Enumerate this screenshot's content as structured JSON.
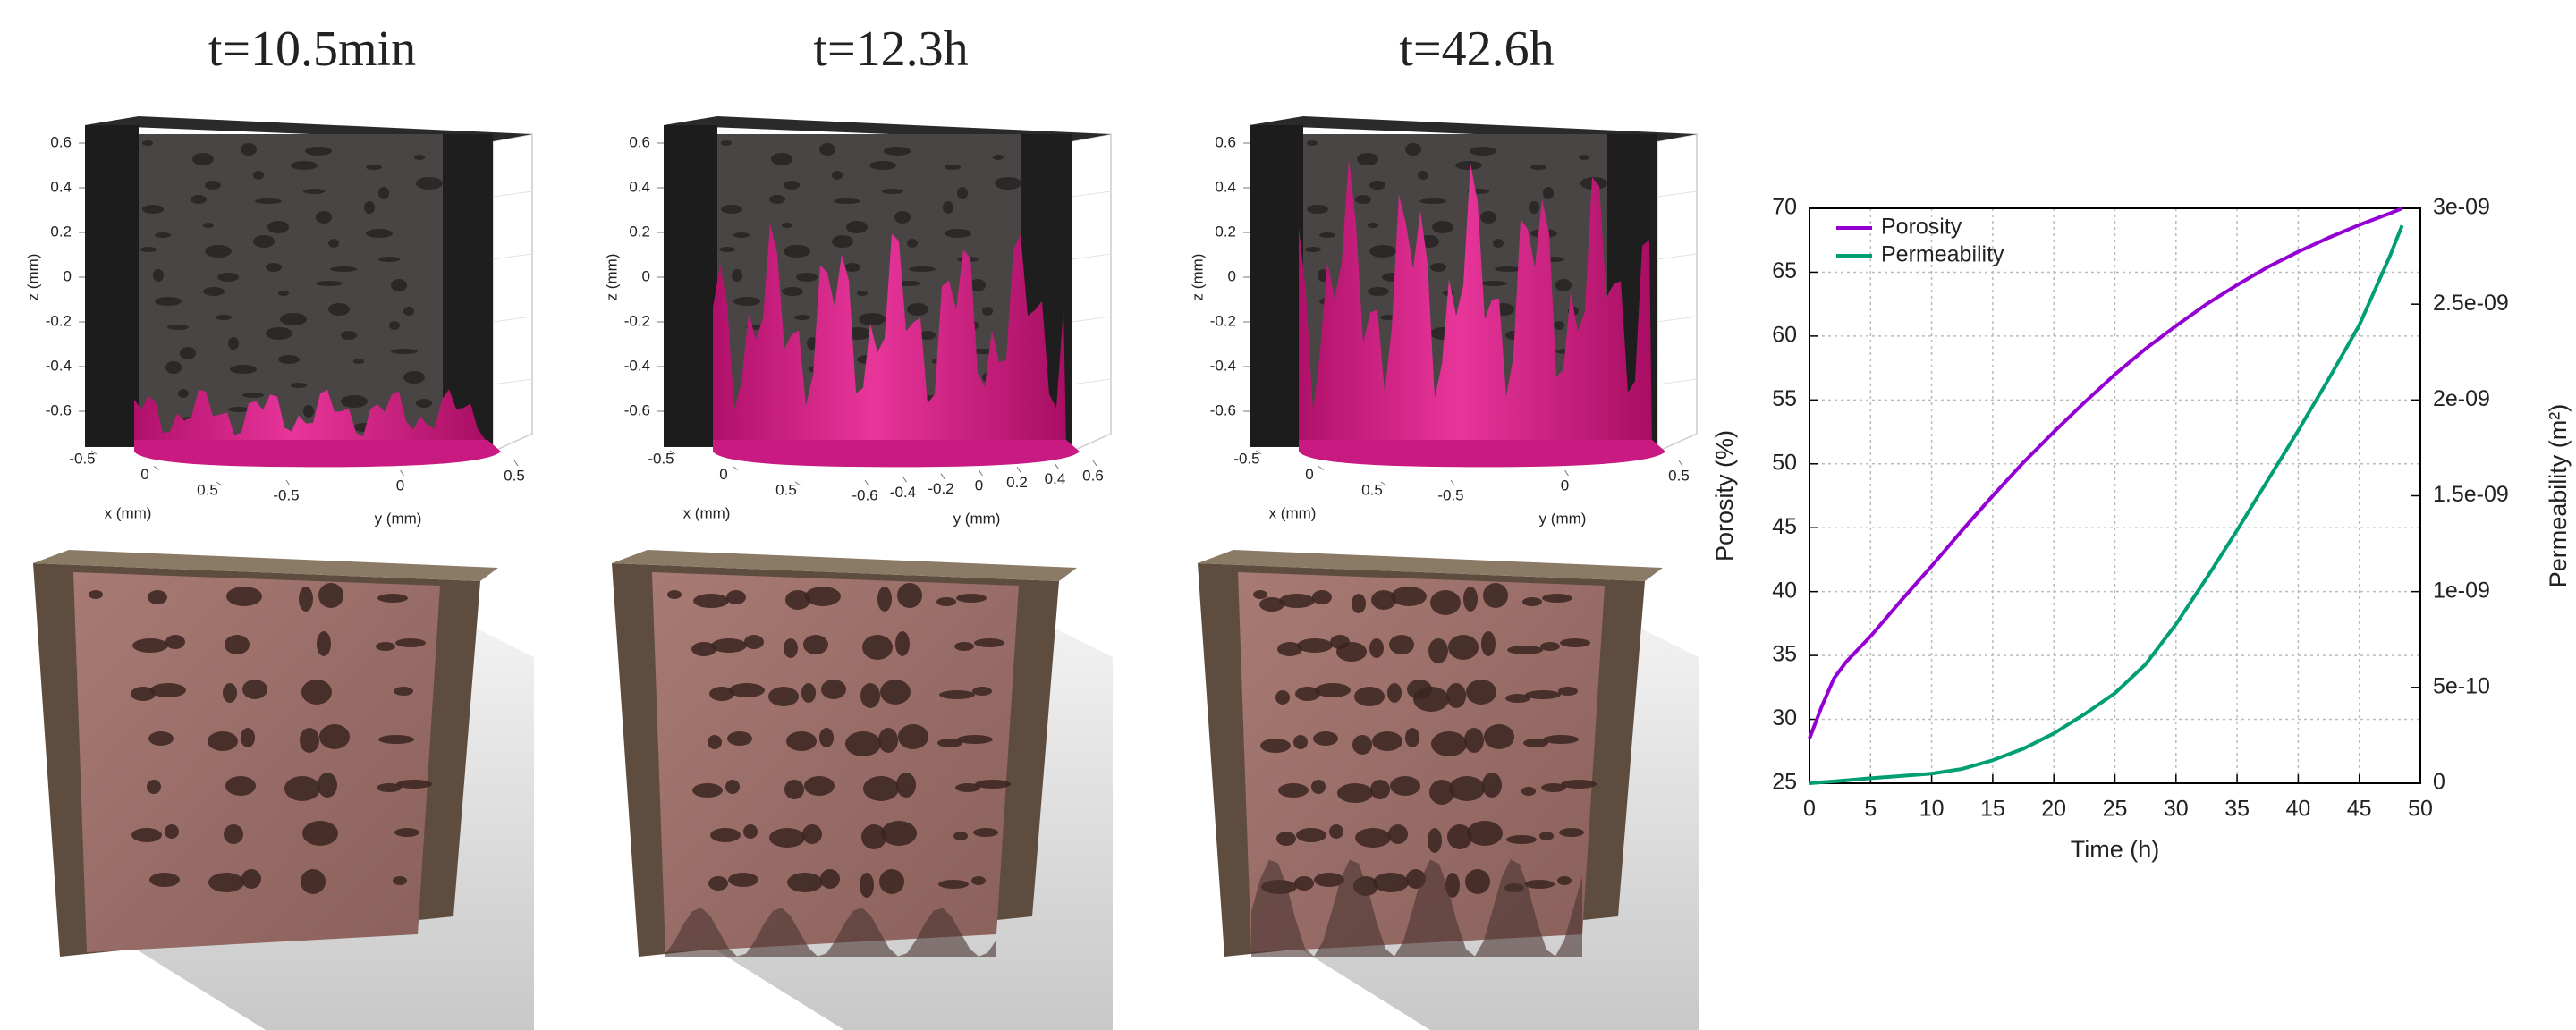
{
  "chart_data": [
    {
      "type": "surface3d",
      "title": "t=10.5min",
      "xlabel": "x (mm)",
      "ylabel": "y (mm)",
      "zlabel": "z (mm)",
      "xticks": [
        -0.5,
        0,
        0.5
      ],
      "yticks": [
        -0.5,
        0,
        0.5
      ],
      "zticks": [
        0.6,
        0.4,
        0.2,
        0,
        -0.2,
        -0.4,
        -0.6
      ]
    },
    {
      "type": "surface3d",
      "title": "t=12.3h",
      "xlabel": "x (mm)",
      "ylabel": "y (mm)",
      "zlabel": "z (mm)",
      "xticks": [
        -0.5,
        0,
        0.5
      ],
      "yticks": [
        -0.6,
        -0.4,
        -0.2,
        0,
        0.2,
        0.4,
        0.6
      ],
      "zticks": [
        0.6,
        0.4,
        0.2,
        0,
        -0.2,
        -0.4,
        -0.6
      ]
    },
    {
      "type": "surface3d",
      "title": "t=42.6h",
      "xlabel": "x (mm)",
      "ylabel": "y (mm)",
      "zlabel": "z (mm)",
      "xticks": [
        -0.5,
        0,
        0.5
      ],
      "yticks": [
        -0.5,
        0,
        0.5
      ],
      "zticks": [
        0.6,
        0.4,
        0.2,
        0,
        -0.2,
        -0.4,
        -0.6
      ]
    },
    {
      "type": "line",
      "xlabel": "Time (h)",
      "ylabel": "Porosity (%)",
      "y2label": "Permeability (m²)",
      "xlim": [
        0,
        50
      ],
      "xticks": [
        0,
        5,
        10,
        15,
        20,
        25,
        30,
        35,
        40,
        45,
        50
      ],
      "ylim": [
        25,
        70
      ],
      "yticks": [
        25,
        30,
        35,
        40,
        45,
        50,
        55,
        60,
        65,
        70
      ],
      "y2lim": [
        0,
        3e-09
      ],
      "y2ticks": [
        0,
        {
          "value": 5e-10,
          "label": "5e-10"
        },
        {
          "value": 1e-09,
          "label": "1e-09"
        },
        {
          "value": 1.5e-09,
          "label": "1.5e-09"
        },
        {
          "value": 2e-09,
          "label": "2e-09"
        },
        {
          "value": 2.5e-09,
          "label": "2.5e-09"
        },
        {
          "value": 3e-09,
          "label": "3e-09"
        }
      ],
      "grid": true,
      "legend": "upper left",
      "x": [
        0,
        1,
        2,
        3,
        5,
        7.5,
        10,
        12.5,
        15,
        17.5,
        20,
        22.5,
        25,
        27.5,
        30,
        32.5,
        35,
        37.5,
        40,
        42.5,
        45,
        47.5,
        48.5
      ],
      "series": [
        {
          "name": "Porosity",
          "color": "#9400d3",
          "axis": "y",
          "values": [
            28.5,
            31,
            33.2,
            34.5,
            36.5,
            39.3,
            42,
            44.8,
            47.5,
            50.1,
            52.5,
            54.8,
            57,
            59,
            60.8,
            62.5,
            64,
            65.4,
            66.6,
            67.7,
            68.7,
            69.6,
            70
          ]
        },
        {
          "name": "Permeability",
          "color": "#009e73",
          "axis": "y2",
          "values": [
            0,
            5e-12,
            1e-11,
            1.5e-11,
            2.6e-11,
            3.8e-11,
            5e-11,
            7.5e-11,
            1.2e-10,
            1.8e-10,
            2.6e-10,
            3.6e-10,
            4.7e-10,
            6.2e-10,
            8.3e-10,
            1.07e-09,
            1.32e-09,
            1.58e-09,
            1.84e-09,
            2.11e-09,
            2.39e-09,
            2.75e-09,
            2.91e-09
          ]
        }
      ]
    }
  ]
}
